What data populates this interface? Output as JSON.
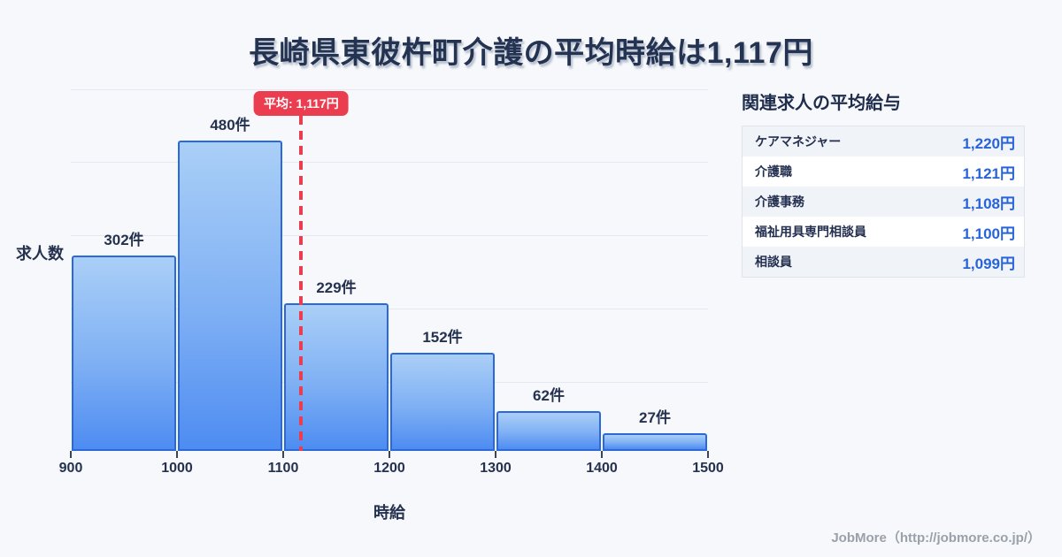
{
  "chart_data": {
    "type": "bar",
    "title": "長崎県東彼杵町介護の平均時給は1,117円",
    "xlabel": "時給",
    "ylabel": "求人数",
    "xlim": [
      900,
      1500
    ],
    "ylim": [
      0,
      560
    ],
    "grid": true,
    "x_ticks": [
      "900",
      "1000",
      "1100",
      "1200",
      "1300",
      "1400",
      "1500"
    ],
    "bins": [
      {
        "start": 900,
        "end": 1000,
        "count": 302,
        "label": "302件"
      },
      {
        "start": 1000,
        "end": 1100,
        "count": 480,
        "label": "480件"
      },
      {
        "start": 1100,
        "end": 1200,
        "count": 229,
        "label": "229件"
      },
      {
        "start": 1200,
        "end": 1300,
        "count": 152,
        "label": "152件"
      },
      {
        "start": 1300,
        "end": 1400,
        "count": 62,
        "label": "62件"
      },
      {
        "start": 1400,
        "end": 1500,
        "count": 27,
        "label": "27件"
      }
    ],
    "average": {
      "value": 1117,
      "label": "平均: 1,117円"
    }
  },
  "side_panel": {
    "heading": "関連求人の平均給与",
    "rows": [
      {
        "label": "ケアマネジャー",
        "value": "1,220円"
      },
      {
        "label": "介護職",
        "value": "1,121円"
      },
      {
        "label": "介護事務",
        "value": "1,108円"
      },
      {
        "label": "福祉用具専門相談員",
        "value": "1,100円"
      },
      {
        "label": "相談員",
        "value": "1,099円"
      }
    ]
  },
  "footer": {
    "credit": "JobMore（http://jobmore.co.jp/）"
  },
  "colors": {
    "background": "#f7f8fb",
    "title_text": "#243351",
    "bar_fill_top": "#aacff7",
    "bar_fill_bottom": "#4d8cf1",
    "bar_border": "#2b68da",
    "average_red": "#ea3d4f",
    "value_blue": "#2763d9",
    "label_navy": "#24324f",
    "row_alt_bg": "#f0f3f8",
    "gridline": "#e4e8f0",
    "footer_text": "#9aa1ab"
  }
}
